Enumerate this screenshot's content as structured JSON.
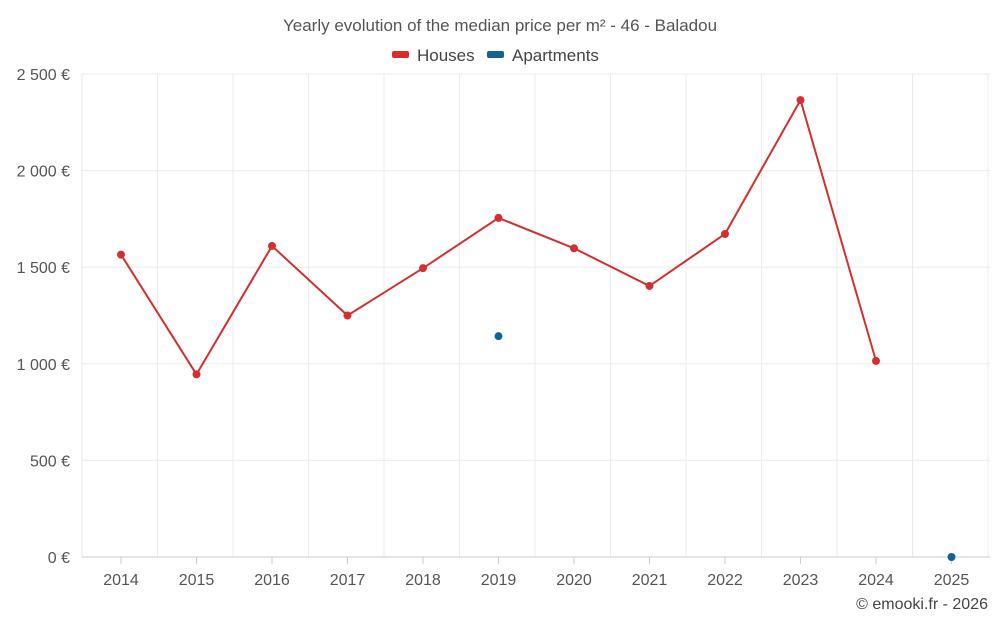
{
  "chart_data": {
    "type": "line",
    "title": "Yearly evolution of the median price per m² - 46 - Baladou",
    "categories": [
      "2014",
      "2015",
      "2016",
      "2017",
      "2018",
      "2019",
      "2020",
      "2021",
      "2022",
      "2023",
      "2024",
      "2025"
    ],
    "ylim": [
      0,
      2500
    ],
    "yticks": [
      0,
      500,
      1000,
      1500,
      2000,
      2500
    ],
    "ytick_labels": [
      "0 €",
      "500 €",
      "1 000 €",
      "1 500 €",
      "2 000 €",
      "2 500 €"
    ],
    "grid": true,
    "legend_position": "top-center",
    "series": [
      {
        "name": "Houses",
        "color": "#d32f2f",
        "line": true,
        "values": [
          1565,
          945,
          1610,
          1250,
          1495,
          1755,
          1598,
          1403,
          1672,
          2365,
          1015,
          null
        ]
      },
      {
        "name": "Apartments",
        "color": "#0f6496",
        "line": true,
        "values": [
          null,
          null,
          null,
          null,
          null,
          1143,
          null,
          null,
          null,
          null,
          null,
          0
        ]
      }
    ]
  },
  "credit": "© emooki.fr - 2026"
}
